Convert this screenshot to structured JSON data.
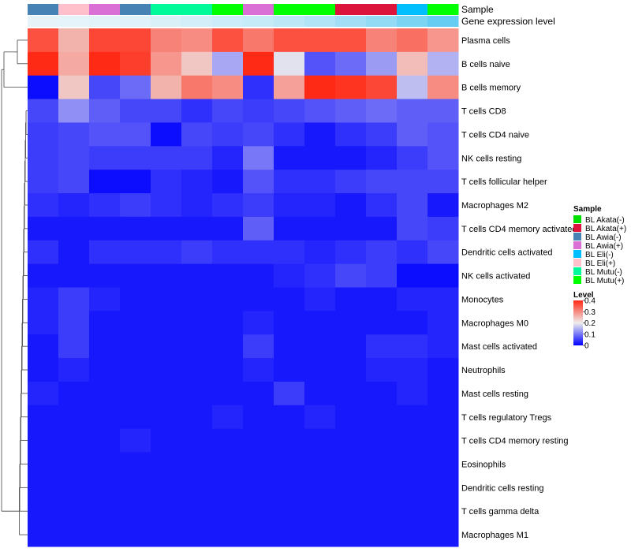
{
  "chart_data": {
    "type": "heatmap",
    "annotation_labels": {
      "sample": "Sample",
      "expression": "Gene expression level"
    },
    "columns": [
      {
        "sample": "BL Awia(-)",
        "expression": 0.05
      },
      {
        "sample": "BL Eli(+)",
        "expression": 0.06
      },
      {
        "sample": "BL Awia(+)",
        "expression": 0.08
      },
      {
        "sample": "BL Awia(-)",
        "expression": 0.1
      },
      {
        "sample": "BL Mutu(-)",
        "expression": 0.14
      },
      {
        "sample": "BL Mutu(-)",
        "expression": 0.17
      },
      {
        "sample": "BL Mutu(+)",
        "expression": 0.22
      },
      {
        "sample": "BL Awia(+)",
        "expression": 0.27
      },
      {
        "sample": "BL Mutu(+)",
        "expression": 0.33
      },
      {
        "sample": "BL Mutu(+)",
        "expression": 0.4
      },
      {
        "sample": "BL Akata(+)",
        "expression": 0.5
      },
      {
        "sample": "BL Akata(+)",
        "expression": 0.6
      },
      {
        "sample": "BL Eli(-)",
        "expression": 0.75
      },
      {
        "sample": "BL Mutu(+)",
        "expression": 0.9
      }
    ],
    "rows": [
      "Plasma cells",
      "B cells naive",
      "B cells memory",
      "T cells CD8",
      "T cells CD4 naive",
      "NK cells resting",
      "T cells follicular helper",
      "Macrophages M2",
      "T cells CD4 memory activated",
      "Dendritic cells activated",
      "NK cells activated",
      "Monocytes",
      "Macrophages M0",
      "Mast cells activated",
      "Neutrophils",
      "Mast cells resting",
      "T cells regulatory  Tregs",
      "T cells CD4 memory resting",
      "Eosinophils",
      "Dendritic cells resting",
      "T cells gamma delta",
      "Macrophages M1"
    ],
    "values": [
      [
        0.36,
        0.26,
        0.37,
        0.37,
        0.31,
        0.3,
        0.36,
        0.32,
        0.36,
        0.36,
        0.36,
        0.31,
        0.33,
        0.29
      ],
      [
        0.4,
        0.27,
        0.41,
        0.38,
        0.29,
        0.24,
        0.14,
        0.42,
        0.19,
        0.07,
        0.09,
        0.13,
        0.25,
        0.15
      ],
      [
        0.01,
        0.24,
        0.06,
        0.09,
        0.26,
        0.32,
        0.3,
        0.04,
        0.28,
        0.4,
        0.39,
        0.37,
        0.16,
        0.3
      ],
      [
        0.06,
        0.12,
        0.08,
        0.06,
        0.06,
        0.04,
        0.06,
        0.05,
        0.06,
        0.07,
        0.08,
        0.09,
        0.08,
        0.08
      ],
      [
        0.05,
        0.06,
        0.07,
        0.07,
        0.01,
        0.06,
        0.05,
        0.06,
        0.04,
        0.02,
        0.04,
        0.05,
        0.08,
        0.07
      ],
      [
        0.05,
        0.06,
        0.05,
        0.05,
        0.05,
        0.05,
        0.03,
        0.1,
        0.02,
        0.02,
        0.02,
        0.03,
        0.05,
        0.07
      ],
      [
        0.05,
        0.06,
        0.01,
        0.01,
        0.04,
        0.03,
        0.02,
        0.07,
        0.04,
        0.04,
        0.05,
        0.06,
        0.06,
        0.06
      ],
      [
        0.04,
        0.03,
        0.04,
        0.05,
        0.04,
        0.03,
        0.04,
        0.05,
        0.03,
        0.03,
        0.02,
        0.04,
        0.06,
        0.02
      ],
      [
        0.02,
        0.02,
        0.02,
        0.02,
        0.02,
        0.02,
        0.02,
        0.08,
        0.02,
        0.02,
        0.02,
        0.02,
        0.06,
        0.05
      ],
      [
        0.04,
        0.02,
        0.04,
        0.04,
        0.04,
        0.05,
        0.04,
        0.04,
        0.04,
        0.03,
        0.04,
        0.05,
        0.04,
        0.06
      ],
      [
        0.02,
        0.02,
        0.02,
        0.02,
        0.02,
        0.02,
        0.02,
        0.02,
        0.03,
        0.04,
        0.06,
        0.05,
        0.01,
        0.01
      ],
      [
        0.03,
        0.05,
        0.03,
        0.02,
        0.02,
        0.02,
        0.02,
        0.02,
        0.02,
        0.03,
        0.02,
        0.02,
        0.03,
        0.03
      ],
      [
        0.03,
        0.05,
        0.02,
        0.02,
        0.02,
        0.02,
        0.02,
        0.03,
        0.02,
        0.02,
        0.02,
        0.02,
        0.02,
        0.03
      ],
      [
        0.02,
        0.05,
        0.02,
        0.02,
        0.02,
        0.02,
        0.02,
        0.05,
        0.02,
        0.02,
        0.02,
        0.04,
        0.04,
        0.03
      ],
      [
        0.02,
        0.03,
        0.02,
        0.02,
        0.02,
        0.02,
        0.02,
        0.03,
        0.02,
        0.02,
        0.02,
        0.03,
        0.03,
        0.02
      ],
      [
        0.03,
        0.02,
        0.02,
        0.02,
        0.02,
        0.02,
        0.02,
        0.02,
        0.05,
        0.02,
        0.02,
        0.02,
        0.03,
        0.02
      ],
      [
        0.02,
        0.02,
        0.02,
        0.02,
        0.02,
        0.02,
        0.03,
        0.02,
        0.02,
        0.03,
        0.02,
        0.02,
        0.02,
        0.02
      ],
      [
        0.02,
        0.02,
        0.02,
        0.03,
        0.02,
        0.02,
        0.02,
        0.02,
        0.02,
        0.02,
        0.02,
        0.02,
        0.02,
        0.02
      ],
      [
        0.02,
        0.02,
        0.02,
        0.02,
        0.02,
        0.02,
        0.02,
        0.02,
        0.02,
        0.02,
        0.02,
        0.02,
        0.02,
        0.02
      ],
      [
        0.02,
        0.02,
        0.02,
        0.02,
        0.02,
        0.02,
        0.02,
        0.02,
        0.02,
        0.02,
        0.02,
        0.02,
        0.02,
        0.02
      ],
      [
        0.02,
        0.02,
        0.02,
        0.02,
        0.02,
        0.02,
        0.02,
        0.02,
        0.02,
        0.02,
        0.02,
        0.02,
        0.02,
        0.02
      ],
      [
        0.02,
        0.02,
        0.02,
        0.02,
        0.02,
        0.02,
        0.02,
        0.02,
        0.02,
        0.02,
        0.02,
        0.02,
        0.02,
        0.02
      ]
    ],
    "color_scale": {
      "min": 0,
      "mid": 0.2,
      "max": 0.4,
      "low_color": "#0000ff",
      "mid_color": "#eeeeee",
      "high_color": "#ff2a16"
    },
    "legend": {
      "sample_title": "Sample",
      "samples": [
        {
          "label": "BL Akata(-)",
          "color": "#00e000"
        },
        {
          "label": "BL Akata(+)",
          "color": "#dc143c"
        },
        {
          "label": "BL Awia(-)",
          "color": "#4682b4"
        },
        {
          "label": "BL Awia(+)",
          "color": "#da70d6"
        },
        {
          "label": "BL Eli(-)",
          "color": "#00bfff"
        },
        {
          "label": "BL Eli(+)",
          "color": "#ffc0cb"
        },
        {
          "label": "BL Mutu(-)",
          "color": "#00fa9a"
        },
        {
          "label": "BL Mutu(+)",
          "color": "#00ff00"
        }
      ],
      "level_title": "Level",
      "level_ticks": [
        {
          "label": "0.4",
          "value": 0.4
        },
        {
          "label": "0.3",
          "value": 0.3
        },
        {
          "label": "0.2",
          "value": 0.2
        },
        {
          "label": "0.1",
          "value": 0.1
        },
        {
          "label": "0",
          "value": 0
        }
      ],
      "expression_colors": {
        "low": "#eef6fb",
        "high": "#56c8f0"
      }
    },
    "dendrogram_rows": "hierarchical clustering of rows (left)"
  }
}
